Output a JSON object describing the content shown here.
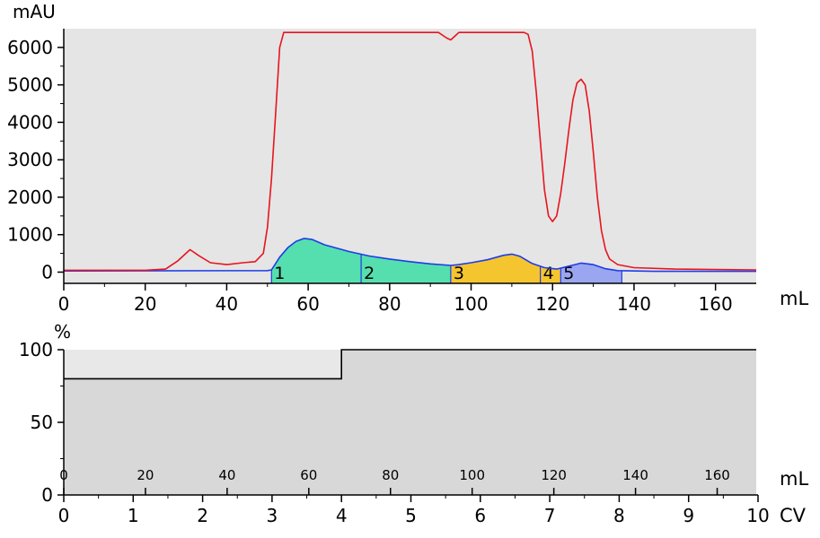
{
  "chart_data": [
    {
      "type": "line",
      "ylabel": "mAU",
      "xlabel": "mL",
      "xlim": [
        0,
        170
      ],
      "ylim": [
        -300,
        6500
      ],
      "x_ticks": [
        0,
        20,
        40,
        60,
        80,
        100,
        120,
        140,
        160
      ],
      "y_ticks": [
        0,
        1000,
        2000,
        3000,
        4000,
        5000,
        6000
      ],
      "grid": false,
      "background": "#e5e5e5",
      "series": [
        {
          "color": "#e8141e",
          "points": [
            [
              0,
              50
            ],
            [
              20,
              50
            ],
            [
              25,
              80
            ],
            [
              28,
              300
            ],
            [
              31,
              600
            ],
            [
              33,
              450
            ],
            [
              36,
              250
            ],
            [
              40,
              200
            ],
            [
              44,
              250
            ],
            [
              47,
              280
            ],
            [
              49,
              500
            ],
            [
              50,
              1200
            ],
            [
              51,
              2500
            ],
            [
              52,
              4200
            ],
            [
              53,
              6000
            ],
            [
              54,
              6400
            ],
            [
              92,
              6400
            ],
            [
              94,
              6250
            ],
            [
              95,
              6200
            ],
            [
              96,
              6300
            ],
            [
              97,
              6400
            ],
            [
              113,
              6400
            ],
            [
              114,
              6350
            ],
            [
              115,
              5900
            ],
            [
              116,
              4800
            ],
            [
              117,
              3500
            ],
            [
              118,
              2200
            ],
            [
              119,
              1500
            ],
            [
              120,
              1350
            ],
            [
              121,
              1500
            ],
            [
              122,
              2100
            ],
            [
              123,
              2900
            ],
            [
              124,
              3800
            ],
            [
              125,
              4600
            ],
            [
              126,
              5050
            ],
            [
              127,
              5150
            ],
            [
              128,
              5000
            ],
            [
              129,
              4300
            ],
            [
              130,
              3200
            ],
            [
              131,
              2000
            ],
            [
              132,
              1100
            ],
            [
              133,
              600
            ],
            [
              134,
              350
            ],
            [
              136,
              200
            ],
            [
              140,
              120
            ],
            [
              150,
              80
            ],
            [
              170,
              60
            ]
          ]
        },
        {
          "color": "#1e3ce8",
          "points": [
            [
              0,
              30
            ],
            [
              50,
              40
            ],
            [
              51,
              60
            ],
            [
              53,
              400
            ],
            [
              55,
              650
            ],
            [
              57,
              820
            ],
            [
              59,
              900
            ],
            [
              61,
              870
            ],
            [
              64,
              730
            ],
            [
              70,
              550
            ],
            [
              75,
              430
            ],
            [
              80,
              350
            ],
            [
              85,
              280
            ],
            [
              90,
              220
            ],
            [
              95,
              180
            ],
            [
              97,
              200
            ],
            [
              100,
              250
            ],
            [
              104,
              330
            ],
            [
              108,
              450
            ],
            [
              110,
              480
            ],
            [
              112,
              420
            ],
            [
              115,
              230
            ],
            [
              118,
              120
            ],
            [
              121,
              80
            ],
            [
              124,
              160
            ],
            [
              127,
              240
            ],
            [
              130,
              200
            ],
            [
              133,
              90
            ],
            [
              136,
              40
            ],
            [
              145,
              20
            ],
            [
              170,
              20
            ]
          ]
        }
      ],
      "fractions": [
        {
          "label": "1",
          "start": 51,
          "end": 73,
          "color": "#56dfae"
        },
        {
          "label": "2",
          "start": 73,
          "end": 95,
          "color": "#56dfae"
        },
        {
          "label": "3",
          "start": 95,
          "end": 117,
          "color": "#f5c530"
        },
        {
          "label": "4",
          "start": 117,
          "end": 122,
          "color": "#f5c530"
        },
        {
          "label": "5",
          "start": 122,
          "end": 137,
          "color": "#9aa6f0"
        }
      ]
    },
    {
      "type": "line",
      "ylabel": "%",
      "xlabel": "mL",
      "xlabel2": "CV",
      "xlim": [
        0,
        10
      ],
      "ylim": [
        0,
        100
      ],
      "y_ticks": [
        0,
        50,
        100
      ],
      "x_ticks": [
        0,
        1,
        2,
        3,
        4,
        5,
        6,
        7,
        8,
        9,
        10
      ],
      "ml_ticks": [
        0,
        20,
        40,
        60,
        80,
        100,
        120,
        140,
        160
      ],
      "ml_per_cv": 17,
      "background_top": "#e8e8e8",
      "background_fill": "#d8d8d8",
      "series": [
        {
          "color": "#000000",
          "points": [
            [
              0,
              80
            ],
            [
              4,
              80
            ],
            [
              4,
              100
            ],
            [
              10,
              100
            ]
          ]
        }
      ]
    }
  ]
}
